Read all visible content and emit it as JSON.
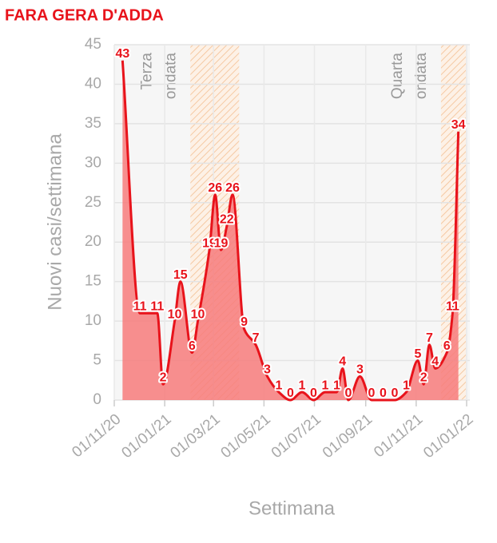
{
  "chart_data": {
    "type": "area",
    "title": "FARA GERA D'ADDA",
    "x_label": "Settimana",
    "y_label": "Nuovi casi/settimana",
    "x": [
      "11/11/20",
      "02/12/20",
      "23/12/20",
      "30/12/20",
      "13/01/21",
      "20/01/21",
      "03/02/21",
      "10/02/21",
      "24/02/21",
      "03/03/21",
      "10/03/21",
      "17/03/21",
      "24/03/21",
      "07/04/21",
      "21/04/21",
      "05/05/21",
      "19/05/21",
      "02/06/21",
      "16/06/21",
      "30/06/21",
      "14/07/21",
      "28/07/21",
      "04/08/21",
      "11/08/21",
      "25/08/21",
      "08/09/21",
      "22/09/21",
      "06/10/21",
      "20/10/21",
      "03/11/21",
      "10/11/21",
      "17/11/21",
      "24/11/21",
      "08/12/21",
      "15/12/21",
      "22/12/21"
    ],
    "series": [
      {
        "color": "#e8131b",
        "fill": "#f77b7b",
        "values": [
          43,
          11,
          11,
          2,
          10,
          15,
          6,
          10,
          19,
          26,
          19,
          22,
          26,
          9,
          7,
          3,
          1,
          0,
          1,
          0,
          1,
          1,
          4,
          0,
          3,
          0,
          0,
          0,
          1,
          5,
          2,
          7,
          4,
          6,
          11,
          34
        ]
      }
    ],
    "xlim": [
      "01/11/20",
      "01/01/22"
    ],
    "xticks": [
      "01/11/20",
      "01/01/21",
      "01/03/21",
      "01/05/21",
      "01/07/21",
      "01/09/21",
      "01/11/21",
      "01/01/22"
    ],
    "ylim": [
      0,
      45
    ],
    "yticks": [
      0,
      5,
      10,
      15,
      20,
      25,
      30,
      35,
      40,
      45
    ],
    "grid": true,
    "bands": [
      {
        "start": "01/02/21",
        "end": "01/04/21",
        "label": [
          "Terza",
          "ondata"
        ]
      },
      {
        "start": "01/12/21",
        "end": "31/12/21",
        "label": [
          "Quarta",
          "ondata"
        ]
      }
    ]
  }
}
